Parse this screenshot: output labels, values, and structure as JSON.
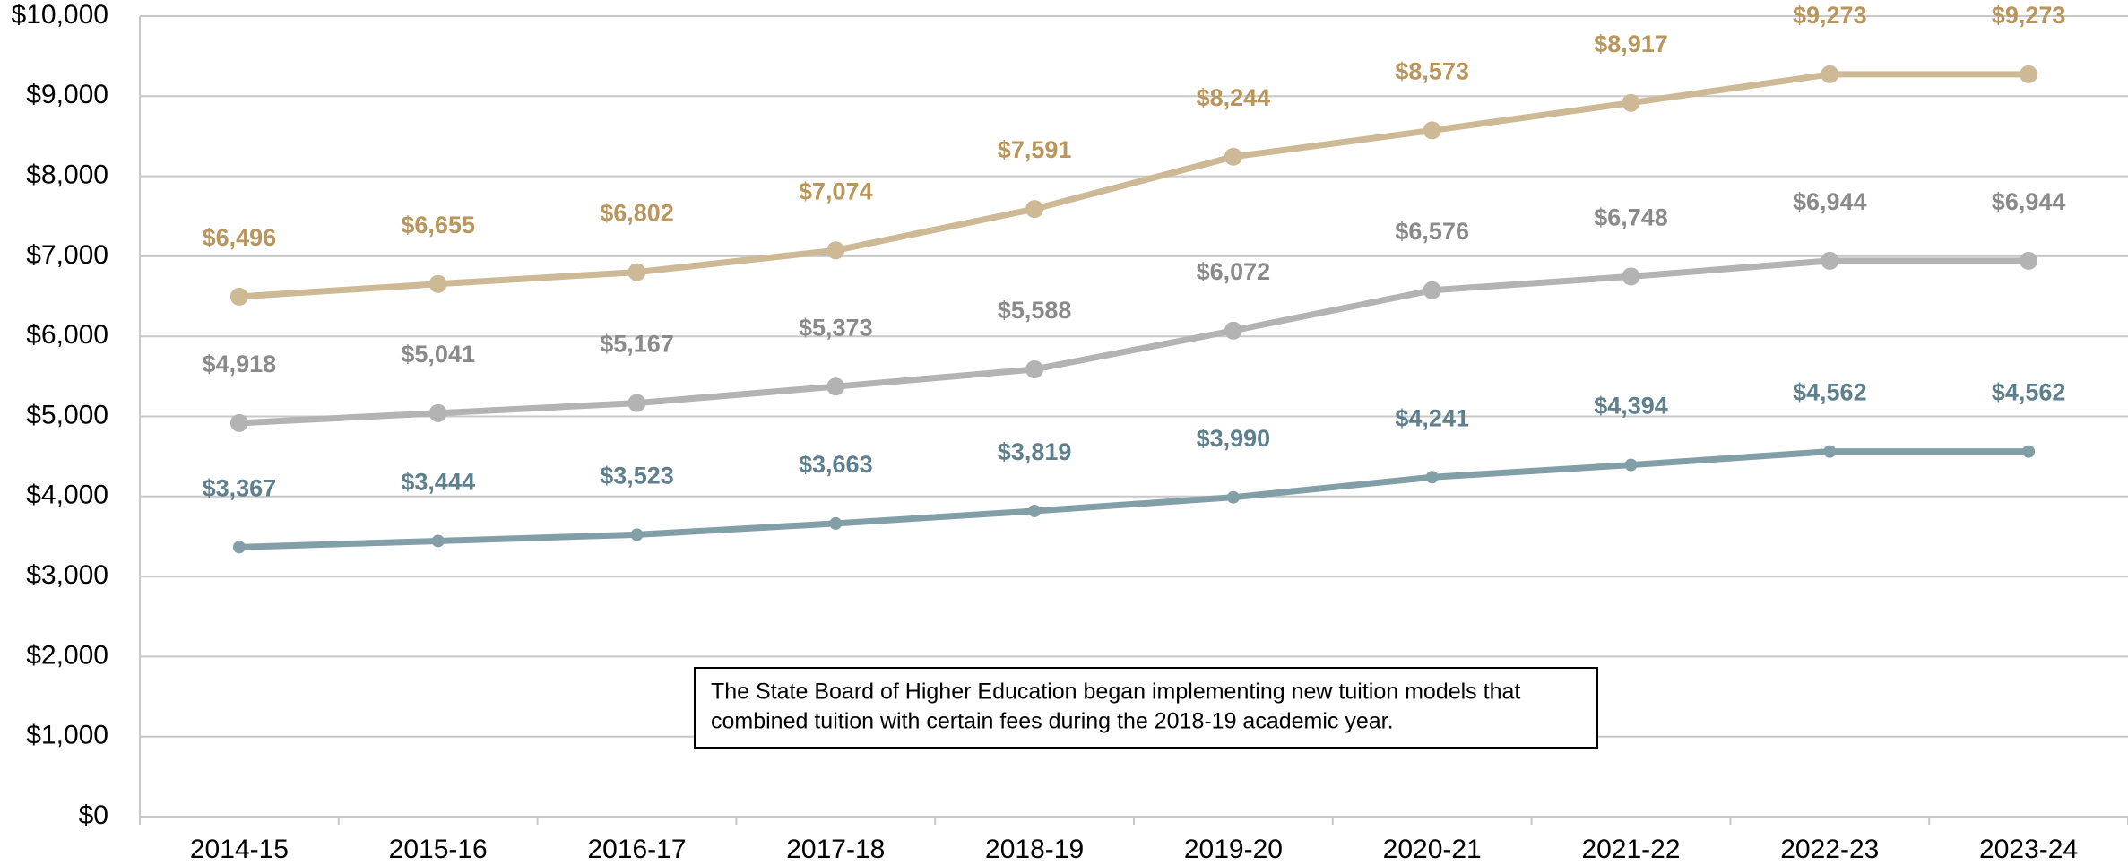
{
  "chart_data": {
    "type": "line",
    "categories": [
      "2014-15",
      "2015-16",
      "2016-17",
      "2017-18",
      "2018-19",
      "2019-20",
      "2020-21",
      "2021-22",
      "2022-23",
      "2023-24"
    ],
    "series": [
      {
        "color": "#cdb995",
        "label_color": "#b8965c",
        "values": [
          6496,
          6655,
          6802,
          7074,
          7591,
          8244,
          8573,
          8917,
          9273,
          9273
        ],
        "value_labels": [
          "$6,496",
          "$6,655",
          "$6,802",
          "$7,074",
          "$7,591",
          "$8,244",
          "$8,573",
          "$8,917",
          "$9,273",
          "$9,273"
        ]
      },
      {
        "color": "#b3b3b3",
        "label_color": "#8a8a8a",
        "values": [
          4918,
          5041,
          5167,
          5373,
          5588,
          6072,
          6576,
          6748,
          6944,
          6944
        ],
        "value_labels": [
          "$4,918",
          "$5,041",
          "$5,167",
          "$5,373",
          "$5,588",
          "$6,072",
          "$6,576",
          "$6,748",
          "$6,944",
          "$6,944"
        ]
      },
      {
        "color": "#829fa8",
        "label_color": "#5e7f8b",
        "values": [
          3367,
          3444,
          3523,
          3663,
          3819,
          3990,
          4241,
          4394,
          4562,
          4562
        ],
        "value_labels": [
          "$3,367",
          "$3,444",
          "$3,523",
          "$3,663",
          "$3,819",
          "$3,990",
          "$4,241",
          "$4,394",
          "$4,562",
          "$4,562"
        ]
      }
    ],
    "ylim": [
      0,
      10000
    ],
    "yticks": [
      {
        "value": 0,
        "label": "$0"
      },
      {
        "value": 1000,
        "label": "$1,000"
      },
      {
        "value": 2000,
        "label": "$2,000"
      },
      {
        "value": 3000,
        "label": "$3,000"
      },
      {
        "value": 4000,
        "label": "$4,000"
      },
      {
        "value": 5000,
        "label": "$5,000"
      },
      {
        "value": 6000,
        "label": "$6,000"
      },
      {
        "value": 7000,
        "label": "$7,000"
      },
      {
        "value": 8000,
        "label": "$8,000"
      },
      {
        "value": 9000,
        "label": "$9,000"
      },
      {
        "value": 10000,
        "label": "$10,000"
      }
    ],
    "grid": true,
    "annotation": [
      "The State Board of Higher Education began implementing new tuition models that",
      "combined tuition with certain fees during the 2018-19 academic year."
    ]
  }
}
